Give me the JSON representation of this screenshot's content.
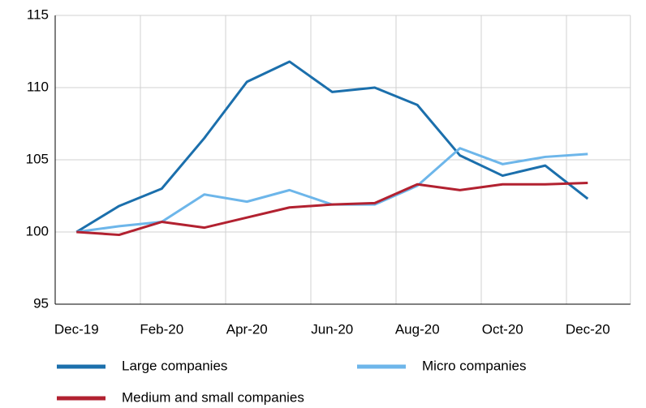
{
  "chart_data": {
    "type": "line",
    "categories": [
      "Dec-19",
      null,
      "Feb-20",
      null,
      "Apr-20",
      null,
      "Jun-20",
      null,
      "Aug-20",
      null,
      "Oct-20",
      null,
      "Dec-20"
    ],
    "series": [
      {
        "name": "Large companies",
        "color": "#1b6fac",
        "values": [
          100,
          101.8,
          103.0,
          106.5,
          110.4,
          111.8,
          109.7,
          110.0,
          108.8,
          105.3,
          103.9,
          104.6,
          102.3
        ]
      },
      {
        "name": "Micro companies",
        "color": "#6db6ea",
        "values": [
          100,
          100.4,
          100.7,
          102.6,
          102.1,
          102.9,
          101.9,
          101.9,
          103.2,
          105.8,
          104.7,
          105.2,
          105.4
        ]
      },
      {
        "name": "Medium and small companies",
        "color": "#b22130",
        "values": [
          100,
          99.8,
          100.7,
          100.3,
          101.0,
          101.7,
          101.9,
          102.0,
          103.3,
          102.9,
          103.3,
          103.3,
          103.4
        ]
      }
    ],
    "ylim": [
      95,
      115
    ],
    "yticks": [
      95,
      100,
      105,
      110,
      115
    ],
    "grid": true
  }
}
